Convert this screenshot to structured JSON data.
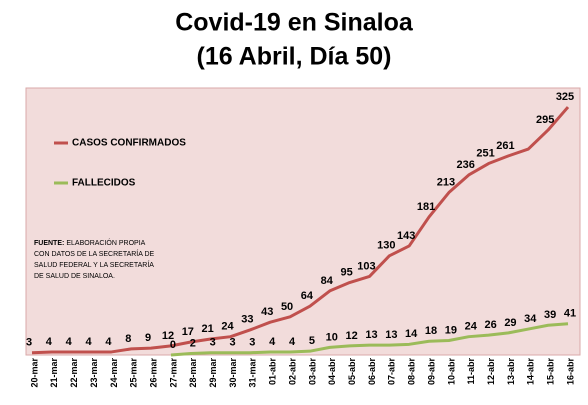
{
  "chart_data": {
    "type": "line",
    "title": "Covid-19 en Sinaloa",
    "subtitle": "(16 Abril, Día 50)",
    "categories": [
      "20-mar",
      "21-mar",
      "22-mar",
      "23-mar",
      "24-mar",
      "25-mar",
      "26-mar",
      "27-mar",
      "28-mar",
      "29-mar",
      "30-mar",
      "31-mar",
      "01-abr",
      "02-abr",
      "03-abr",
      "04-abr",
      "05-abr",
      "06-abr",
      "07-abr",
      "08-abr",
      "09-abr",
      "10-abr",
      "11-abr",
      "12-abr",
      "13-abr",
      "14-abr",
      "15-abr",
      "16-abr"
    ],
    "series": [
      {
        "name": "CASOS CONFIRMADOS",
        "color": "#c0504d",
        "values": [
          3,
          4,
          4,
          4,
          4,
          8,
          9,
          12,
          17,
          21,
          24,
          33,
          43,
          50,
          64,
          84,
          95,
          103,
          130,
          143,
          181,
          213,
          236,
          251,
          261,
          270,
          295,
          325
        ],
        "value_labels": [
          "3",
          "4",
          "4",
          "4",
          "4",
          "8",
          "9",
          "12",
          "17",
          "21",
          "24",
          "33",
          "43",
          "50",
          "64",
          "84",
          "95",
          "103",
          "130",
          "143",
          "181",
          "213",
          "236",
          "251",
          "261",
          null,
          "295",
          "325"
        ]
      },
      {
        "name": "FALLECIDOS",
        "color": "#9bbb59",
        "values": [
          null,
          null,
          null,
          null,
          null,
          null,
          null,
          0,
          2,
          3,
          3,
          3,
          4,
          4,
          5,
          10,
          12,
          13,
          13,
          14,
          18,
          19,
          24,
          26,
          29,
          34,
          39,
          41
        ]
      }
    ],
    "ylim": [
      0,
      350
    ],
    "note_title": "FUENTE:",
    "note_lines": [
      "ELABORACIÓN PROPIA",
      "CON DATOS DE LA SECRETARÍA DE",
      "SALUD FEDERAL Y LA SECRETARÍA",
      "DE SALUD DE SINALOA."
    ]
  }
}
